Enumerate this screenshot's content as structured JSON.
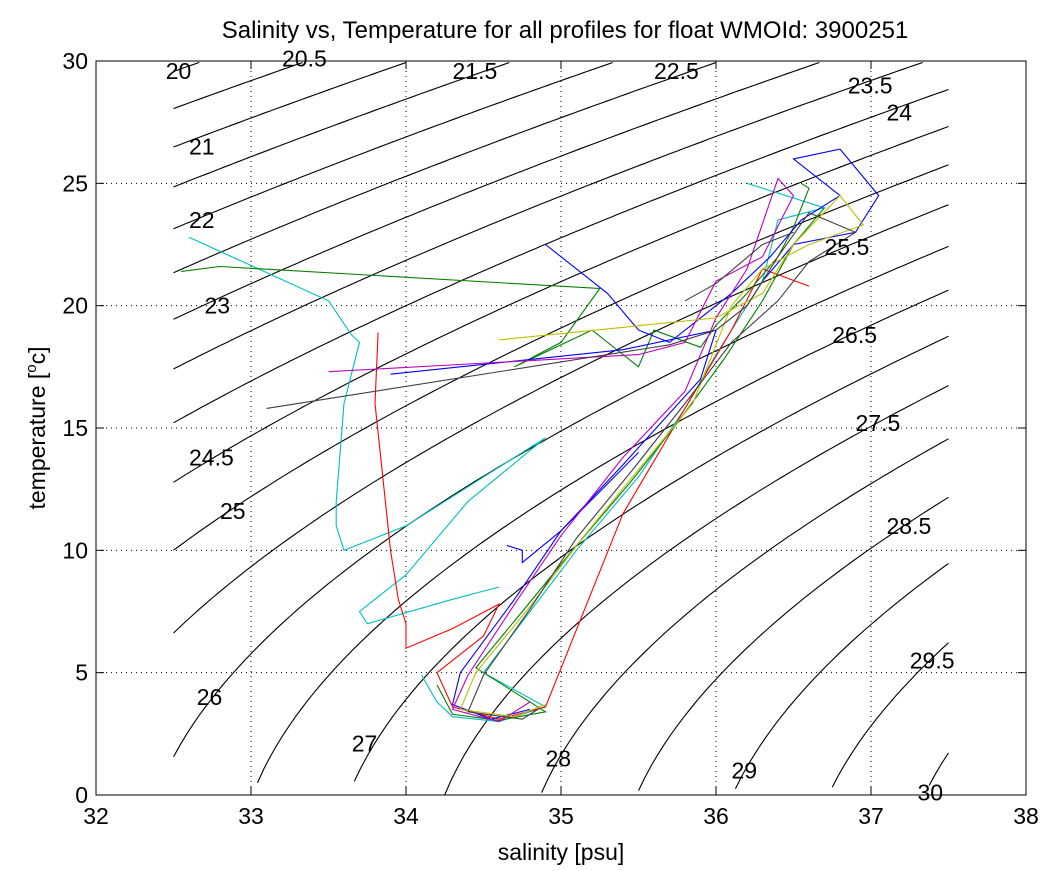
{
  "chart_data": {
    "type": "line",
    "title": "Salinity vs, Temperature for all profiles for float WMOId: 3900251",
    "xlabel": "salinity [psu]",
    "ylabel_main": "temperature [",
    "ylabel_sup": "o",
    "ylabel_end": "c]",
    "xlim": [
      32,
      38
    ],
    "ylim": [
      0,
      30
    ],
    "xticks": [
      32,
      33,
      34,
      35,
      36,
      37,
      38
    ],
    "yticks": [
      0,
      5,
      10,
      15,
      20,
      25,
      30
    ],
    "xtick_labels": [
      "32",
      "33",
      "34",
      "35",
      "36",
      "37",
      "38"
    ],
    "ytick_labels": [
      "0",
      "5",
      "10",
      "15",
      "20",
      "25",
      "30"
    ],
    "grid": true,
    "density_contours": {
      "sigma_levels": [
        20,
        20.5,
        21,
        21.5,
        22,
        22.5,
        23,
        23.5,
        24,
        24.5,
        25,
        25.5,
        26,
        26.5,
        27,
        27.5,
        28,
        28.5,
        29,
        29.5,
        30
      ],
      "salinity_range": [
        32.5,
        37.5
      ],
      "labels": [
        {
          "text": "20",
          "s": 32.45,
          "t": 29.6
        },
        {
          "text": "20.5",
          "s": 33.2,
          "t": 30.1
        },
        {
          "text": "21",
          "s": 32.6,
          "t": 26.5
        },
        {
          "text": "21.5",
          "s": 34.3,
          "t": 29.6
        },
        {
          "text": "22",
          "s": 32.6,
          "t": 23.5
        },
        {
          "text": "22.5",
          "s": 35.6,
          "t": 29.6
        },
        {
          "text": "23",
          "s": 32.7,
          "t": 20.0
        },
        {
          "text": "23.5",
          "s": 36.85,
          "t": 29.0
        },
        {
          "text": "24",
          "s": 37.1,
          "t": 27.9
        },
        {
          "text": "24.5",
          "s": 32.6,
          "t": 13.8
        },
        {
          "text": "25",
          "s": 32.8,
          "t": 11.6
        },
        {
          "text": "25.5",
          "s": 36.7,
          "t": 22.4
        },
        {
          "text": "26",
          "s": 32.65,
          "t": 4.0
        },
        {
          "text": "26.5",
          "s": 36.75,
          "t": 18.8
        },
        {
          "text": "27",
          "s": 33.65,
          "t": 2.1
        },
        {
          "text": "27.5",
          "s": 36.9,
          "t": 15.2
        },
        {
          "text": "28",
          "s": 34.9,
          "t": 1.5
        },
        {
          "text": "28.5",
          "s": 37.1,
          "t": 11.0
        },
        {
          "text": "29",
          "s": 36.1,
          "t": 1.0
        },
        {
          "text": "29.5",
          "s": 37.25,
          "t": 5.5
        },
        {
          "text": "30",
          "s": 37.3,
          "t": 0.1
        }
      ]
    },
    "series": [
      {
        "color": "#00bfbf",
        "points": [
          [
            32.6,
            22.8
          ],
          [
            33.5,
            20.2
          ],
          [
            33.65,
            18.8
          ],
          [
            33.7,
            18.5
          ],
          [
            33.6,
            16.0
          ],
          [
            33.55,
            12.0
          ],
          [
            33.55,
            11.0
          ],
          [
            33.6,
            10.0
          ],
          [
            34.0,
            11.0
          ],
          [
            34.9,
            14.6
          ],
          [
            34.4,
            12.0
          ],
          [
            34.0,
            9.0
          ],
          [
            33.7,
            7.5
          ],
          [
            33.75,
            7.0
          ],
          [
            34.3,
            8.0
          ],
          [
            34.6,
            8.5
          ]
        ]
      },
      {
        "color": "#00bfbf",
        "points": [
          [
            34.1,
            4.9
          ],
          [
            34.2,
            3.8
          ],
          [
            34.3,
            3.2
          ],
          [
            34.6,
            3.0
          ],
          [
            34.9,
            3.6
          ],
          [
            34.5,
            5.0
          ],
          [
            34.8,
            7.5
          ],
          [
            35.1,
            10.0
          ],
          [
            35.5,
            13.0
          ],
          [
            35.8,
            15.8
          ],
          [
            36.0,
            18.0
          ],
          [
            36.3,
            21.0
          ],
          [
            36.4,
            23.5
          ],
          [
            36.7,
            24.0
          ],
          [
            36.2,
            25.0
          ]
        ]
      },
      {
        "color": "#ff0000",
        "points": [
          [
            33.82,
            18.9
          ],
          [
            33.8,
            16.0
          ],
          [
            33.85,
            13.0
          ],
          [
            33.9,
            10.0
          ],
          [
            33.95,
            8.0
          ],
          [
            34.0,
            7.0
          ],
          [
            34.0,
            6.0
          ],
          [
            34.3,
            6.8
          ],
          [
            34.6,
            7.8
          ],
          [
            34.5,
            6.5
          ],
          [
            34.2,
            5.0
          ],
          [
            34.3,
            3.6
          ],
          [
            34.6,
            3.1
          ],
          [
            34.9,
            3.6
          ],
          [
            35.4,
            11.5
          ],
          [
            35.8,
            15.8
          ],
          [
            36.1,
            19.0
          ],
          [
            36.3,
            21.5
          ],
          [
            36.6,
            20.8
          ]
        ]
      },
      {
        "color": "#008000",
        "points": [
          [
            32.55,
            21.4
          ],
          [
            32.8,
            21.6
          ],
          [
            35.25,
            20.7
          ],
          [
            35.0,
            18.5
          ],
          [
            34.7,
            17.5
          ],
          [
            35.2,
            19.0
          ],
          [
            35.5,
            17.5
          ],
          [
            35.6,
            19.0
          ],
          [
            35.9,
            18.3
          ],
          [
            36.0,
            19.2
          ],
          [
            36.2,
            20.5
          ],
          [
            36.4,
            22.0
          ],
          [
            36.5,
            23.2
          ],
          [
            36.6,
            24.8
          ],
          [
            36.55,
            25.0
          ]
        ]
      },
      {
        "color": "#008000",
        "points": [
          [
            34.2,
            4.5
          ],
          [
            34.3,
            3.3
          ],
          [
            34.6,
            3.05
          ],
          [
            34.9,
            3.4
          ],
          [
            34.45,
            5.2
          ],
          [
            34.75,
            7.5
          ],
          [
            35.1,
            10.2
          ],
          [
            35.45,
            12.8
          ],
          [
            35.75,
            15.2
          ],
          [
            36.05,
            17.8
          ],
          [
            36.3,
            20.2
          ],
          [
            36.5,
            22.5
          ],
          [
            36.7,
            24.0
          ]
        ]
      },
      {
        "color": "#0000ff",
        "points": [
          [
            34.9,
            22.5
          ],
          [
            35.3,
            20.5
          ],
          [
            35.5,
            19.0
          ],
          [
            35.7,
            18.5
          ],
          [
            35.9,
            19.5
          ],
          [
            36.1,
            20.5
          ],
          [
            36.35,
            22.0
          ],
          [
            36.55,
            23.5
          ],
          [
            36.8,
            24.5
          ],
          [
            36.5,
            26.0
          ],
          [
            36.8,
            26.4
          ],
          [
            37.05,
            24.5
          ],
          [
            36.9,
            23.0
          ],
          [
            36.5,
            22.5
          ],
          [
            36.3,
            21.0
          ]
        ]
      },
      {
        "color": "#0000ff",
        "points": [
          [
            33.9,
            17.2
          ],
          [
            35.4,
            18.2
          ],
          [
            36.0,
            19.0
          ],
          [
            35.9,
            17.0
          ],
          [
            35.4,
            13.5
          ],
          [
            35.0,
            10.8
          ],
          [
            34.7,
            8.0
          ],
          [
            34.35,
            5.0
          ],
          [
            34.3,
            3.7
          ],
          [
            34.55,
            3.1
          ],
          [
            34.8,
            3.5
          ]
        ]
      },
      {
        "color": "#0000ff",
        "points": [
          [
            34.65,
            10.2
          ],
          [
            34.75,
            10.0
          ],
          [
            34.75,
            9.5
          ],
          [
            35.0,
            10.8
          ],
          [
            35.5,
            14.0
          ]
        ]
      },
      {
        "color": "#bf00bf",
        "points": [
          [
            33.5,
            17.3
          ],
          [
            35.5,
            18.0
          ],
          [
            35.8,
            18.5
          ],
          [
            36.0,
            21.0
          ],
          [
            36.3,
            22.0
          ],
          [
            36.5,
            24.5
          ],
          [
            36.4,
            25.2
          ],
          [
            36.2,
            21.5
          ],
          [
            36.0,
            19.5
          ],
          [
            35.8,
            16.5
          ],
          [
            35.4,
            13.8
          ],
          [
            35.0,
            10.6
          ],
          [
            34.7,
            7.8
          ],
          [
            34.4,
            4.9
          ],
          [
            34.3,
            3.5
          ],
          [
            34.6,
            3.0
          ],
          [
            34.8,
            3.8
          ]
        ]
      },
      {
        "color": "#bfbf00",
        "points": [
          [
            34.6,
            18.6
          ],
          [
            36.0,
            19.5
          ],
          [
            36.3,
            20.5
          ],
          [
            36.5,
            22.5
          ],
          [
            36.8,
            24.5
          ],
          [
            36.95,
            23.3
          ],
          [
            36.6,
            22.5
          ],
          [
            36.3,
            21.5
          ],
          [
            36.1,
            20.0
          ],
          [
            35.85,
            16.0
          ],
          [
            35.5,
            13.3
          ],
          [
            35.15,
            10.6
          ],
          [
            34.8,
            7.7
          ],
          [
            34.45,
            5.0
          ],
          [
            34.35,
            3.5
          ],
          [
            34.7,
            3.2
          ],
          [
            34.9,
            3.7
          ]
        ]
      },
      {
        "color": "#404040",
        "points": [
          [
            33.1,
            15.8
          ],
          [
            35.7,
            18.4
          ],
          [
            36.0,
            19.0
          ],
          [
            36.2,
            20.0
          ],
          [
            36.4,
            22.0
          ],
          [
            36.6,
            23.8
          ],
          [
            36.9,
            23.0
          ],
          [
            36.6,
            21.8
          ],
          [
            36.4,
            20.2
          ],
          [
            36.1,
            18.5
          ],
          [
            35.8,
            16.0
          ],
          [
            35.45,
            13.2
          ],
          [
            35.1,
            10.5
          ],
          [
            34.8,
            7.6
          ],
          [
            34.5,
            4.9
          ],
          [
            34.4,
            3.4
          ],
          [
            34.75,
            3.1
          ],
          [
            34.85,
            3.5
          ]
        ]
      },
      {
        "color": "#404040",
        "points": [
          [
            35.8,
            20.2
          ],
          [
            36.0,
            20.9
          ],
          [
            36.3,
            22.5
          ],
          [
            36.5,
            23.0
          ]
        ]
      }
    ]
  }
}
